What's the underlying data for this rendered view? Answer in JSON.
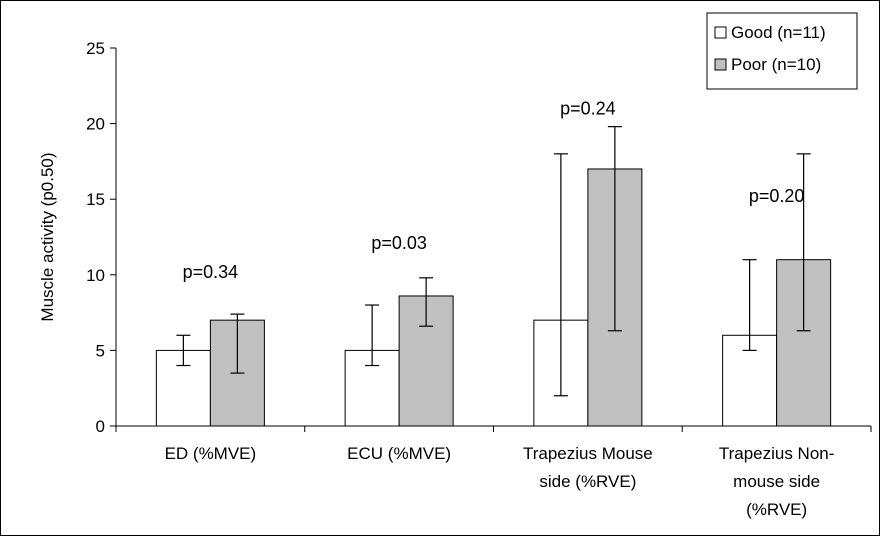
{
  "chart_data": {
    "type": "bar",
    "title": "",
    "xlabel": "",
    "ylabel": "Muscle activity (p0.50)",
    "ylim": [
      0,
      25
    ],
    "y_ticks": [
      0,
      5,
      10,
      15,
      20,
      25
    ],
    "grid": false,
    "legend_position": "top-right",
    "categories": [
      [
        "ED (%MVE)"
      ],
      [
        "ECU (%MVE)"
      ],
      [
        "Trapezius Mouse",
        "side (%RVE)"
      ],
      [
        "Trapezius Non-",
        "mouse side",
        "(%RVE)"
      ]
    ],
    "series": [
      {
        "name": "Good (n=11)",
        "color": "#ffffff",
        "values": [
          5,
          5,
          7,
          6
        ],
        "error_low": [
          4,
          4,
          2,
          5
        ],
        "error_high": [
          6,
          8,
          18,
          11
        ]
      },
      {
        "name": "Poor (n=10)",
        "color": "#c0c0c0",
        "values": [
          7,
          8.6,
          17,
          11
        ],
        "error_low": [
          3.5,
          6.6,
          6.3,
          6.3
        ],
        "error_high": [
          7.4,
          9.8,
          19.8,
          18
        ]
      }
    ],
    "annotations": [
      {
        "text": "p=0.34",
        "category": 0,
        "y": 9.8
      },
      {
        "text": "p=0.03",
        "category": 1,
        "y": 11.7
      },
      {
        "text": "p=0.24",
        "category": 2,
        "y": 20.6
      },
      {
        "text": "p=0.20",
        "category": 3,
        "y": 14.8
      }
    ]
  }
}
